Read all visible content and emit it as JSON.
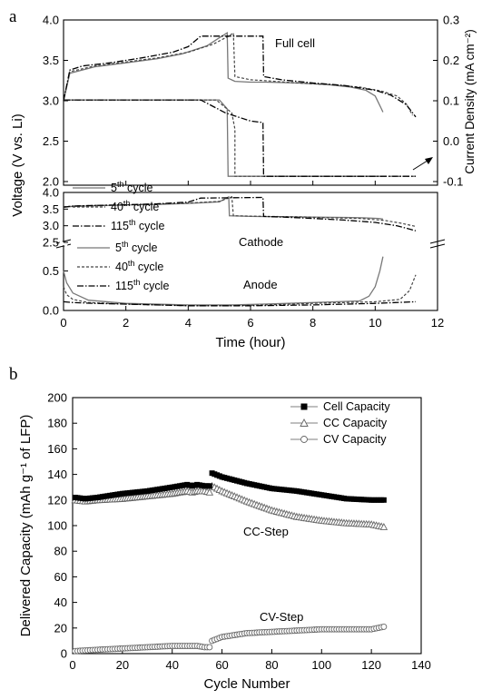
{
  "chart_data": [
    {
      "panel_label": "a",
      "type": "line",
      "xlabel": "Time (hour)",
      "xlim": [
        0,
        12
      ],
      "x_ticks": [
        "0",
        "2",
        "4",
        "6",
        "8",
        "10",
        "12"
      ],
      "subplots": [
        {
          "ylabel_left": "Voltage (V vs. Li)",
          "ylabel_right": "Current Density (mA cm⁻²)",
          "ylim_left": [
            2.0,
            4.0
          ],
          "yticks_left": [
            "2.0",
            "2.5",
            "3.0",
            "3.5",
            "4.0"
          ],
          "ylim_right": [
            -0.1,
            0.3
          ],
          "yticks_right": [
            "-0.1",
            "0.0",
            "0.1",
            "0.2",
            "0.3"
          ],
          "annotation": "Full cell",
          "legend": [
            "5th cycle",
            "40th cycle",
            "115th cycle"
          ],
          "voltage_series": [
            {
              "name": "5th cycle",
              "x": [
                0,
                0.2,
                1,
                2,
                3,
                3.8,
                4.6,
                5.0,
                5.25,
                5.28,
                5.5,
                6.0,
                6.5,
                7.5,
                8.5,
                9.2,
                9.7,
                10.0,
                10.2,
                10.25
              ],
              "y": [
                3.0,
                3.34,
                3.42,
                3.47,
                3.52,
                3.58,
                3.68,
                3.78,
                3.84,
                3.28,
                3.24,
                3.23,
                3.23,
                3.22,
                3.2,
                3.17,
                3.13,
                3.06,
                2.9,
                2.86
              ]
            },
            {
              "name": "40th cycle",
              "x": [
                0,
                0.2,
                1,
                2,
                3,
                4,
                4.8,
                5.3,
                5.45,
                5.5,
                6.0,
                6.45,
                7.5,
                8.5,
                9.5,
                10.2,
                10.7,
                11.0,
                11.2
              ],
              "y": [
                3.0,
                3.36,
                3.43,
                3.48,
                3.53,
                3.6,
                3.7,
                3.8,
                3.84,
                3.3,
                3.26,
                3.25,
                3.22,
                3.2,
                3.17,
                3.12,
                3.06,
                2.96,
                2.82
              ]
            },
            {
              "name": "115th cycle",
              "x": [
                0,
                0.2,
                0.6,
                1.5,
                2.5,
                3.5,
                4.0,
                4.4,
                6.4,
                6.42,
                7.0,
                8.0,
                9.0,
                10.0,
                10.5,
                11.0,
                11.3
              ],
              "y": [
                3.0,
                3.38,
                3.43,
                3.47,
                3.53,
                3.6,
                3.67,
                3.8,
                3.8,
                3.3,
                3.26,
                3.22,
                3.19,
                3.13,
                3.07,
                2.95,
                2.8
              ]
            }
          ],
          "current_series": [
            {
              "name": "5th cycle",
              "x": [
                0,
                5.0,
                5.25,
                5.28,
                5.28,
                10.3
              ],
              "y": [
                0.102,
                0.102,
                0.08,
                -0.087,
                -0.087,
                -0.087
              ]
            },
            {
              "name": "40th cycle",
              "x": [
                0,
                4.9,
                5.4,
                5.5,
                5.5,
                11.3
              ],
              "y": [
                0.102,
                0.102,
                0.07,
                0.03,
                -0.087,
                -0.087
              ]
            },
            {
              "name": "115th cycle",
              "x": [
                0,
                4.4,
                5.2,
                6.0,
                6.4,
                6.42,
                11.3
              ],
              "y": [
                0.102,
                0.102,
                0.07,
                0.05,
                0.046,
                -0.087,
                -0.087
              ]
            }
          ]
        },
        {
          "ylabel": "Voltage (V vs. Li)",
          "yticks_upper": [
            "2.5",
            "3.0",
            "3.5",
            "4.0"
          ],
          "ylim_upper": [
            2.5,
            4.0
          ],
          "yticks_lower": [
            "0.0",
            "0.5"
          ],
          "ylim_lower": [
            0.0,
            0.7
          ],
          "annotations": [
            "Cathode",
            "Anode"
          ],
          "legend": [
            "5th cycle",
            "40th cycle",
            "115th cycle"
          ],
          "cathode_series": [
            {
              "name": "5th cycle",
              "x": [
                0,
                0.3,
                1,
                2,
                3,
                4,
                5.0,
                5.3,
                5.32,
                6,
                7,
                8,
                9,
                9.6,
                10.1,
                10.25
              ],
              "y": [
                3.55,
                3.58,
                3.6,
                3.62,
                3.64,
                3.67,
                3.72,
                3.87,
                3.3,
                3.28,
                3.27,
                3.26,
                3.25,
                3.24,
                3.22,
                3.2
              ]
            },
            {
              "name": "40th cycle",
              "x": [
                0,
                0.3,
                1,
                2,
                3,
                4,
                5.0,
                5.4,
                5.45,
                6.5,
                7.5,
                8.5,
                9.5,
                10.3,
                10.8,
                11.3
              ],
              "y": [
                3.57,
                3.59,
                3.61,
                3.63,
                3.65,
                3.68,
                3.73,
                3.87,
                3.3,
                3.28,
                3.27,
                3.24,
                3.22,
                3.16,
                3.08,
                2.98
              ]
            },
            {
              "name": "115th cycle",
              "x": [
                0,
                0.3,
                1,
                2,
                3,
                4.0,
                4.4,
                6.4,
                6.42,
                7,
                8,
                9,
                10,
                10.7,
                11.3
              ],
              "y": [
                3.56,
                3.59,
                3.61,
                3.63,
                3.66,
                3.71,
                3.83,
                3.85,
                3.28,
                3.26,
                3.22,
                3.17,
                3.1,
                3.0,
                2.85
              ]
            }
          ],
          "anode_series": [
            {
              "name": "5th cycle",
              "x": [
                0,
                0.1,
                0.3,
                0.8,
                2,
                4,
                5.3,
                6.4,
                8,
                9.5,
                9.8,
                10.0,
                10.15,
                10.25
              ],
              "y": [
                0.5,
                0.35,
                0.22,
                0.13,
                0.09,
                0.07,
                0.07,
                0.08,
                0.1,
                0.12,
                0.18,
                0.3,
                0.5,
                0.68
              ]
            },
            {
              "name": "40th cycle",
              "x": [
                0,
                0.1,
                0.3,
                0.8,
                2,
                4,
                5.4,
                6.5,
                8,
                10,
                10.8,
                11.1,
                11.3
              ],
              "y": [
                0.3,
                0.2,
                0.14,
                0.1,
                0.08,
                0.06,
                0.06,
                0.07,
                0.09,
                0.11,
                0.14,
                0.25,
                0.45
              ]
            },
            {
              "name": "115th cycle",
              "x": [
                0,
                0.3,
                1,
                2,
                4,
                6,
                8,
                10,
                11.3
              ],
              "y": [
                0.11,
                0.1,
                0.09,
                0.08,
                0.06,
                0.06,
                0.07,
                0.09,
                0.11
              ]
            }
          ]
        }
      ]
    },
    {
      "panel_label": "b",
      "type": "scatter",
      "xlabel": "Cycle Number",
      "ylabel": "Delivered Capacity (mAh g⁻¹ of LFP)",
      "xlim": [
        0,
        140
      ],
      "ylim": [
        0,
        200
      ],
      "x_ticks": [
        "0",
        "20",
        "40",
        "60",
        "80",
        "100",
        "120",
        "140"
      ],
      "y_ticks": [
        "0",
        "20",
        "40",
        "60",
        "80",
        "100",
        "120",
        "140",
        "160",
        "180",
        "200"
      ],
      "legend": [
        "Cell Capacity",
        "CC Capacity",
        "CV Capacity"
      ],
      "annotations": [
        "CC-Step",
        "CV-Step"
      ],
      "series": [
        {
          "name": "Cell Capacity",
          "marker": "filled-square",
          "key_x": [
            1,
            5,
            10,
            20,
            30,
            40,
            46,
            48,
            50,
            53,
            55,
            56,
            60,
            70,
            80,
            90,
            100,
            110,
            120,
            125
          ],
          "key_y": [
            122,
            121,
            122,
            125,
            127,
            130,
            132,
            131,
            132,
            131,
            131,
            141,
            138,
            133,
            129,
            127,
            124,
            121,
            120,
            120
          ]
        },
        {
          "name": "CC Capacity",
          "marker": "open-triangle",
          "key_x": [
            1,
            5,
            10,
            20,
            30,
            40,
            46,
            48,
            50,
            53,
            55,
            56,
            60,
            70,
            80,
            90,
            100,
            110,
            120,
            125
          ],
          "key_y": [
            120,
            119,
            120,
            121,
            123,
            125,
            127,
            126,
            127,
            127,
            126,
            131,
            127,
            119,
            112,
            107,
            104,
            102,
            101,
            99
          ]
        },
        {
          "name": "CV Capacity",
          "marker": "open-circle",
          "key_x": [
            1,
            10,
            20,
            30,
            40,
            46,
            48,
            50,
            53,
            55,
            56,
            60,
            70,
            80,
            90,
            100,
            110,
            120,
            125
          ],
          "key_y": [
            2,
            3,
            4,
            5,
            6,
            6,
            6,
            6,
            5,
            5,
            10,
            13,
            16,
            17,
            18,
            19,
            19,
            19,
            21
          ]
        }
      ]
    }
  ]
}
